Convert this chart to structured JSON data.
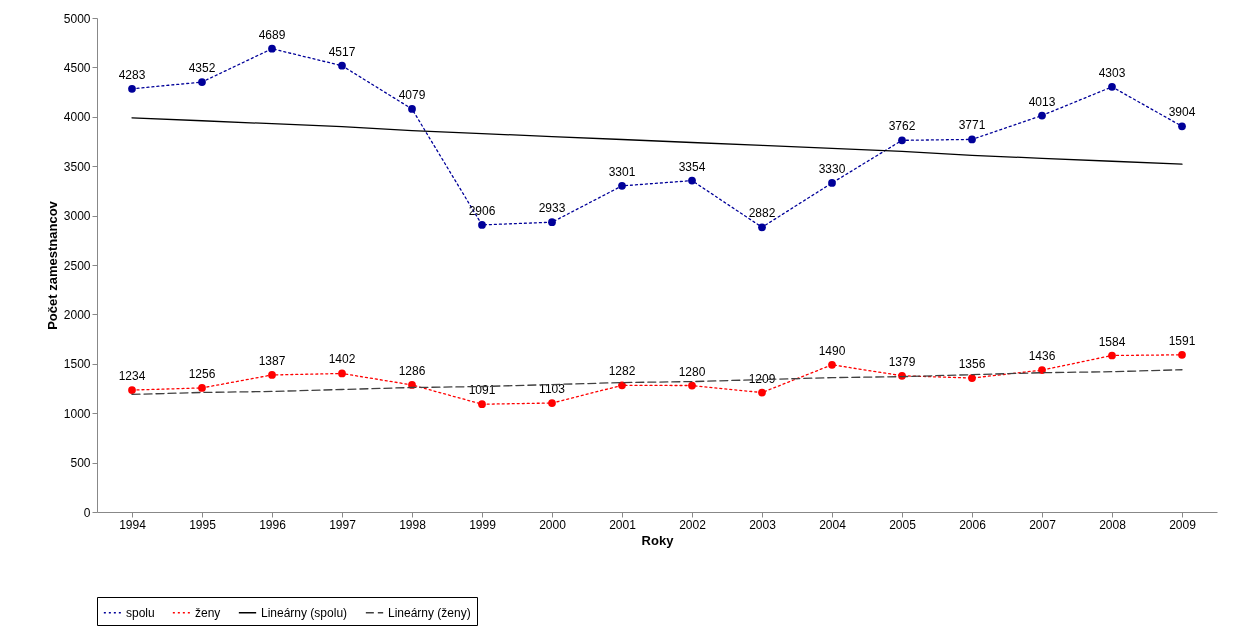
{
  "chart_data": {
    "type": "line",
    "xlabel": "Roky",
    "ylabel": "Počet zamestnancov",
    "categories": [
      "1994",
      "1995",
      "1996",
      "1997",
      "1998",
      "1999",
      "2000",
      "2001",
      "2002",
      "2003",
      "2004",
      "2005",
      "2006",
      "2007",
      "2008",
      "2009"
    ],
    "series": [
      {
        "name": "spolu",
        "color": "#000099",
        "line_style": "dotted",
        "marker": "circle",
        "values": [
          4283,
          4352,
          4689,
          4517,
          4079,
          2906,
          2933,
          3301,
          3354,
          2882,
          3330,
          3762,
          3771,
          4013,
          4303,
          3904
        ],
        "value_labels": [
          "4283",
          "4352",
          "4689",
          "4517",
          "4079",
          "2906",
          "2933",
          "3301",
          "3354",
          "2882",
          "3330",
          "3762",
          "3771",
          "4013",
          "4303",
          "3904"
        ]
      },
      {
        "name": "ženy",
        "color": "#ff0000",
        "line_style": "dotted",
        "marker": "circle",
        "values": [
          1234,
          1256,
          1387,
          1402,
          1286,
          1091,
          1103,
          1282,
          1280,
          1209,
          1490,
          1379,
          1356,
          1436,
          1584,
          1591
        ],
        "value_labels": [
          "1234",
          "1256",
          "1387",
          "1402",
          "1286",
          "1091",
          "1103",
          "1282",
          "1280",
          "1209",
          "1490",
          "1379",
          "1356",
          "1436",
          "1584",
          "1591"
        ]
      },
      {
        "name": "Lineárny (spolu)",
        "color": "#000000",
        "line_style": "solid",
        "marker": "none",
        "values": [
          3990,
          3960,
          3930,
          3900,
          3860,
          3830,
          3800,
          3770,
          3740,
          3710,
          3680,
          3650,
          3610,
          3580,
          3550,
          3520
        ]
      },
      {
        "name": "Lineárny (ženy)",
        "color": "#404040",
        "line_style": "dashed",
        "marker": "none",
        "values": [
          1190,
          1210,
          1220,
          1240,
          1260,
          1270,
          1290,
          1310,
          1320,
          1340,
          1360,
          1370,
          1390,
          1410,
          1420,
          1440
        ]
      }
    ],
    "ylim": [
      0,
      5000
    ],
    "yticks": [
      0,
      500,
      1000,
      1500,
      2000,
      2500,
      3000,
      3500,
      4000,
      4500,
      5000
    ],
    "grid": false,
    "legend": "bottom"
  }
}
